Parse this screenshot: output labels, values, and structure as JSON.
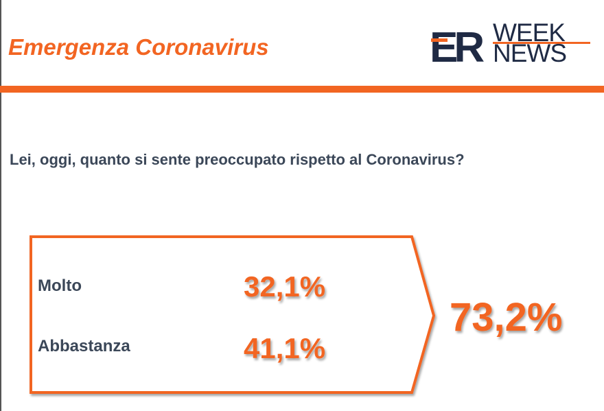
{
  "header": {
    "title": "Emergenza Coronavirus",
    "logo": {
      "mark": "ER",
      "top": "WEEK",
      "bottom": "NEWS"
    }
  },
  "question": "Lei, oggi, quanto si sente preoccupato rispetto al Coronavirus?",
  "items": [
    {
      "label": "Molto",
      "value": "32,1%"
    },
    {
      "label": "Abbastanza",
      "value": "41,1%"
    }
  ],
  "total": "73,2%"
}
